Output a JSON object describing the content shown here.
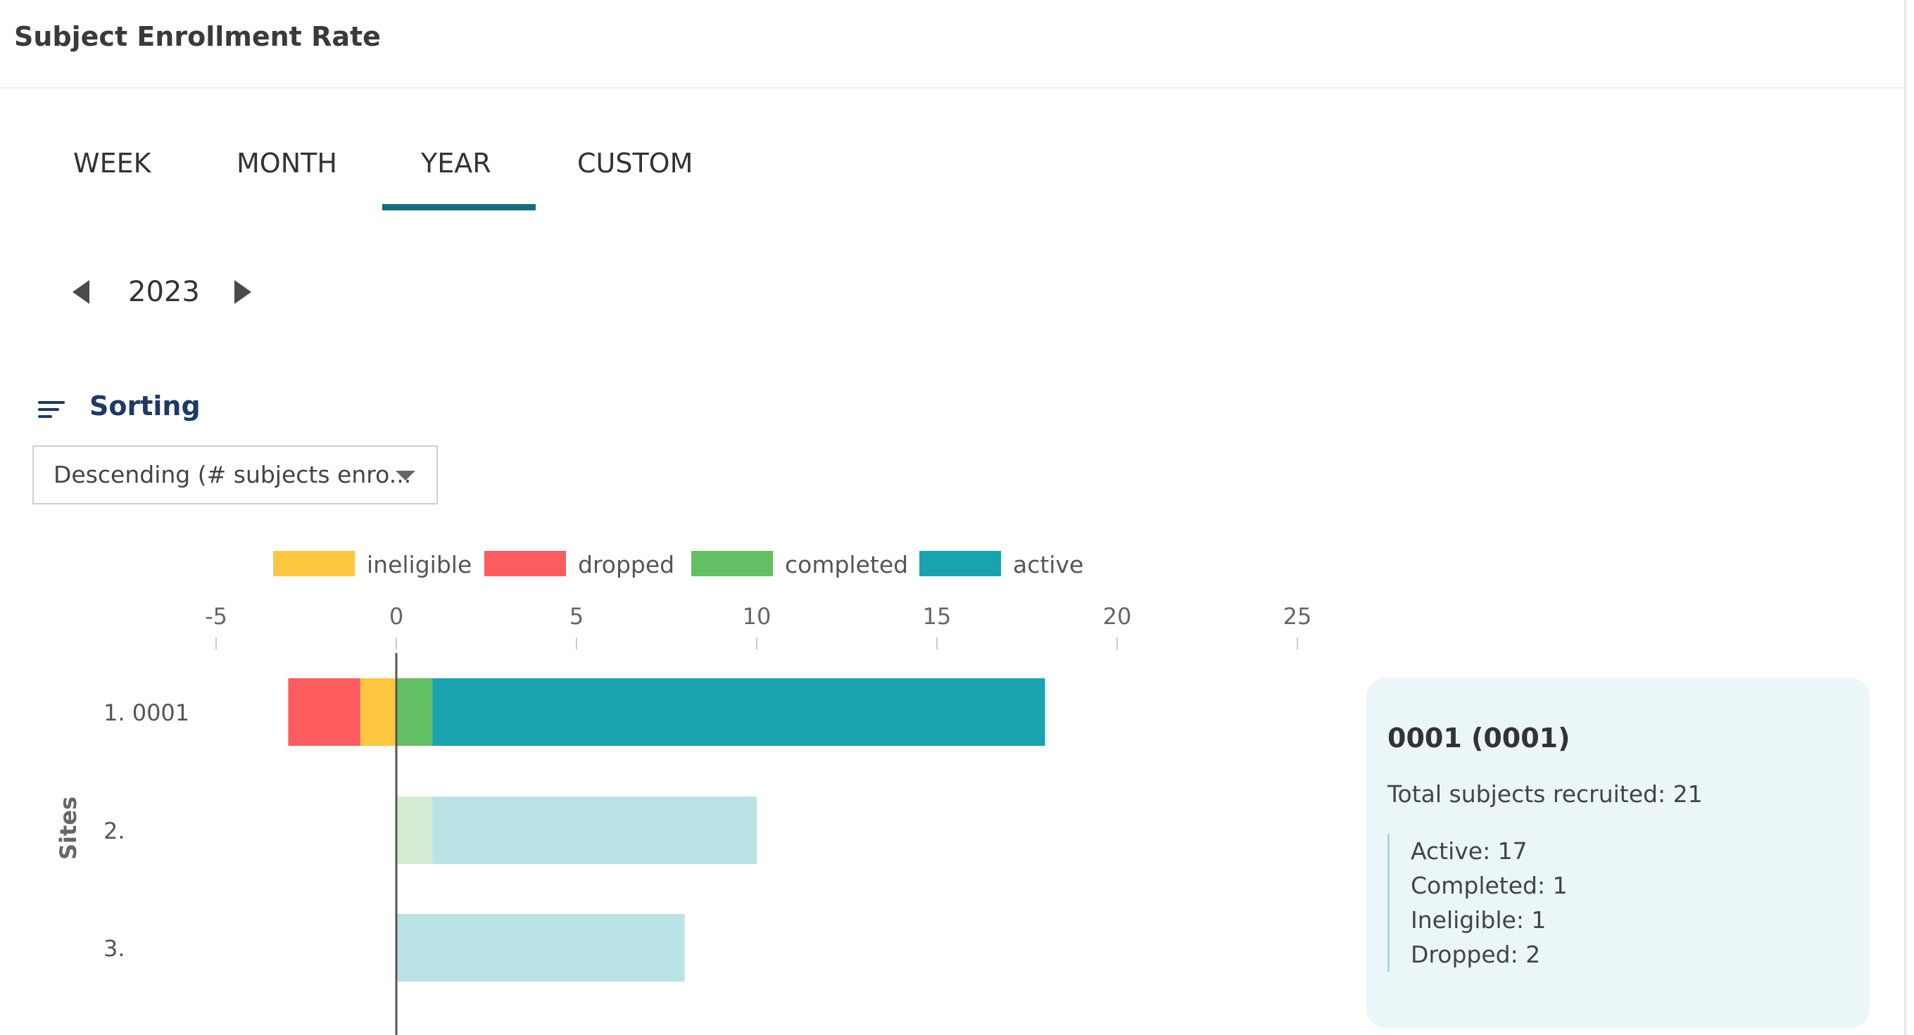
{
  "header": {
    "title": "Subject Enrollment Rate"
  },
  "tabs": [
    {
      "label": "WEEK"
    },
    {
      "label": "MONTH"
    },
    {
      "label": "YEAR",
      "active": true
    },
    {
      "label": "CUSTOM"
    }
  ],
  "period": {
    "year": "2023"
  },
  "sorting": {
    "label": "Sorting",
    "selected": "Descending (# subjects enro..."
  },
  "colors": {
    "accent": "#126f80",
    "ineligible": "#fec740",
    "dropped": "#fd5c5e",
    "completed": "#63bf64",
    "active": "#19a3ae",
    "completed_faded": "#d4ecd3",
    "active_faded": "#bae3e6"
  },
  "chart_data": {
    "type": "bar",
    "orientation": "horizontal",
    "stacked": true,
    "categories": [
      "1. 0001",
      "2.",
      "3."
    ],
    "series": [
      {
        "name": "ineligible",
        "values": [
          -1,
          0,
          0
        ]
      },
      {
        "name": "dropped",
        "values": [
          -2,
          0,
          0
        ]
      },
      {
        "name": "completed",
        "values": [
          1,
          1,
          0
        ]
      },
      {
        "name": "active",
        "values": [
          17,
          9,
          8
        ]
      }
    ],
    "highlighted_category": 0,
    "x_ticks": [
      "-5",
      "0",
      "5",
      "10",
      "15",
      "20",
      "25"
    ],
    "xlim": [
      -5,
      25
    ],
    "ylabel": "Sites",
    "legend": [
      "ineligible",
      "dropped",
      "completed",
      "active"
    ],
    "legend_position": "top"
  },
  "tooltip": {
    "title": "0001 (0001)",
    "total": "Total subjects recruited:  21",
    "lines": [
      "Active: 17",
      "Completed:  1",
      "Ineligible:  1",
      "Dropped: 2"
    ]
  }
}
